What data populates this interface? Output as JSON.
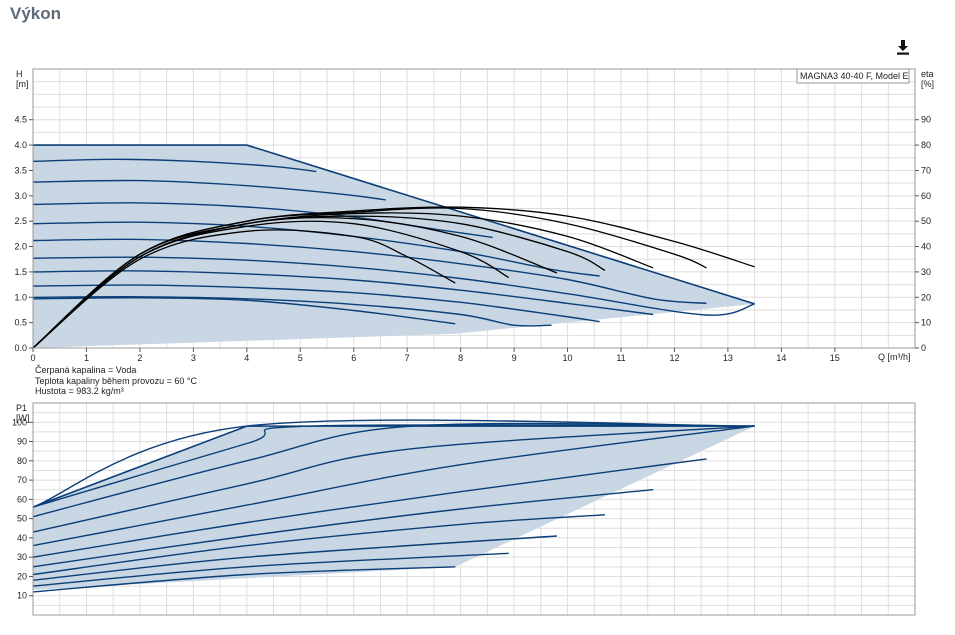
{
  "page": {
    "title": "Výkon"
  },
  "toolbar": {
    "download_icon": "download-icon"
  },
  "fluid_info": {
    "fluid": "Čerpaná kapalina = Voda",
    "temperature": "Teplota kapaliny během provozu = 60 °C",
    "density": "Hustota = 983.2 kg/m³"
  },
  "colors": {
    "curve": "#0b3f78",
    "area_fill": "#c9d6e3",
    "efficiency": "#000000",
    "grid": "#dedede"
  },
  "chart_data": [
    {
      "type": "line",
      "title": "",
      "legend": "MAGNA3 40-40 F, Model E",
      "xlabel": "Q [m³/h]",
      "ylabel_top": "H",
      "ylabel_bottom": "[m]",
      "y2label_top": "eta",
      "y2label_bottom": "[%]",
      "xlim": [
        0,
        16.5
      ],
      "ylim": [
        0,
        5.5
      ],
      "y2lim": [
        0,
        110
      ],
      "xticks": [
        "0",
        "1",
        "2",
        "3",
        "4",
        "5",
        "6",
        "7",
        "8",
        "9",
        "10",
        "11",
        "12",
        "13",
        "14",
        "15"
      ],
      "yticks": [
        "0.0",
        "0.5",
        "1.0",
        "1.5",
        "2.0",
        "2.5",
        "3.0",
        "3.5",
        "4.0",
        "4.5"
      ],
      "y2ticks": [
        "0",
        "10",
        "20",
        "30",
        "40",
        "50",
        "60",
        "70",
        "80",
        "90"
      ],
      "envelope": [
        [
          0,
          4.0
        ],
        [
          4.0,
          4.0
        ],
        [
          13.5,
          0.87
        ],
        [
          7.9,
          0.28
        ],
        [
          0,
          0
        ]
      ],
      "head_curves": [
        {
          "x": [
            0,
            1.5,
            3,
            4.5,
            5.3
          ],
          "y": [
            3.68,
            3.72,
            3.68,
            3.58,
            3.48
          ]
        },
        {
          "x": [
            0,
            2,
            4,
            5.8,
            6.6
          ],
          "y": [
            3.27,
            3.3,
            3.2,
            3.03,
            2.92
          ]
        },
        {
          "x": [
            0,
            2,
            4,
            6,
            7.6,
            8.6
          ],
          "y": [
            2.83,
            2.86,
            2.78,
            2.58,
            2.33,
            2.18
          ]
        },
        {
          "x": [
            0,
            2,
            4,
            6,
            8,
            9.7,
            10.6
          ],
          "y": [
            2.45,
            2.48,
            2.4,
            2.2,
            1.9,
            1.55,
            1.42
          ]
        },
        {
          "x": [
            0,
            2,
            4,
            6,
            8,
            10,
            11.6,
            12.6
          ],
          "y": [
            2.12,
            2.14,
            2.06,
            1.9,
            1.66,
            1.35,
            0.97,
            0.88
          ]
        },
        {
          "x": [
            0,
            2,
            4,
            6,
            8,
            10,
            12.6,
            13.5
          ],
          "y": [
            1.77,
            1.79,
            1.73,
            1.59,
            1.37,
            1.07,
            0.65,
            0.87
          ]
        },
        {
          "x": [
            0,
            2,
            4,
            6,
            8,
            10,
            11.6
          ],
          "y": [
            1.5,
            1.52,
            1.46,
            1.34,
            1.14,
            0.88,
            0.66
          ]
        },
        {
          "x": [
            0,
            2,
            4,
            6,
            8,
            9.9,
            10.6
          ],
          "y": [
            1.22,
            1.24,
            1.19,
            1.09,
            0.9,
            0.63,
            0.52
          ]
        },
        {
          "x": [
            0,
            2,
            4,
            6,
            8,
            9.0,
            9.7
          ],
          "y": [
            1.0,
            1.01,
            0.97,
            0.86,
            0.66,
            0.45,
            0.45
          ]
        },
        {
          "x": [
            0,
            2,
            4,
            6,
            7.9
          ],
          "y": [
            0.97,
            0.99,
            0.94,
            0.74,
            0.48
          ]
        }
      ],
      "efficiency_curves": [
        {
          "x": [
            0,
            2,
            4,
            6,
            7,
            7.9
          ],
          "y": [
            0,
            35,
            46,
            44,
            36,
            25.6
          ]
        },
        {
          "x": [
            0,
            2,
            4,
            6,
            8,
            8.9
          ],
          "y": [
            0,
            36,
            48,
            49,
            38,
            27.8
          ]
        },
        {
          "x": [
            0,
            2,
            4,
            6,
            8,
            9.8
          ],
          "y": [
            0,
            36,
            49,
            51,
            44,
            29.6
          ]
        },
        {
          "x": [
            0,
            2,
            4,
            6,
            8,
            10,
            10.7
          ],
          "y": [
            0,
            36,
            49,
            52,
            49,
            38,
            30.6
          ]
        },
        {
          "x": [
            0,
            2,
            4,
            6,
            8,
            10,
            11.6
          ],
          "y": [
            0,
            37,
            49,
            53,
            52,
            44,
            31.6
          ]
        },
        {
          "x": [
            0,
            2,
            4,
            6,
            8,
            10,
            12,
            12.6
          ],
          "y": [
            0,
            37,
            50,
            53.5,
            55,
            49,
            37,
            31.6
          ]
        },
        {
          "x": [
            0,
            2,
            4,
            6,
            8,
            10,
            12,
            13.5
          ],
          "y": [
            0,
            37,
            50,
            54,
            55.5,
            52,
            42,
            32
          ]
        }
      ]
    },
    {
      "type": "line",
      "title": "",
      "ylabel_top": "P1",
      "ylabel_bottom": "[W]",
      "xlim": [
        0,
        16.5
      ],
      "ylim": [
        0,
        110
      ],
      "yticks": [
        "10",
        "20",
        "30",
        "40",
        "50",
        "60",
        "70",
        "80",
        "90",
        "100"
      ],
      "envelope": [
        [
          0,
          56
        ],
        [
          4.0,
          98
        ],
        [
          13.5,
          98
        ],
        [
          7.9,
          25
        ],
        [
          0,
          13
        ]
      ],
      "power_curves": [
        {
          "x": [
            0,
            4,
            7.9
          ],
          "y": [
            12,
            21,
            25
          ]
        },
        {
          "x": [
            0,
            4,
            8.9
          ],
          "y": [
            15,
            25,
            32
          ]
        },
        {
          "x": [
            0,
            4,
            9.8
          ],
          "y": [
            18,
            30,
            41
          ]
        },
        {
          "x": [
            0,
            4,
            8,
            10.7
          ],
          "y": [
            21,
            36,
            47,
            52
          ]
        },
        {
          "x": [
            0,
            4,
            8,
            11.6
          ],
          "y": [
            25,
            41,
            55,
            65
          ]
        },
        {
          "x": [
            0,
            4,
            8,
            12.6
          ],
          "y": [
            30,
            48,
            64,
            81
          ]
        },
        {
          "x": [
            0,
            4,
            8,
            13.5
          ],
          "y": [
            36,
            57,
            78,
            98
          ]
        },
        {
          "x": [
            0,
            4,
            7,
            13.5
          ],
          "y": [
            43,
            68,
            86,
            98
          ]
        },
        {
          "x": [
            0,
            4,
            7.1,
            13.5
          ],
          "y": [
            51,
            80,
            98,
            98
          ]
        },
        {
          "x": [
            0,
            4,
            5.2,
            13.5
          ],
          "y": [
            56,
            89,
            98,
            98
          ]
        },
        {
          "x": [
            0,
            4,
            13.5
          ],
          "y": [
            56,
            98,
            98
          ]
        }
      ]
    }
  ]
}
